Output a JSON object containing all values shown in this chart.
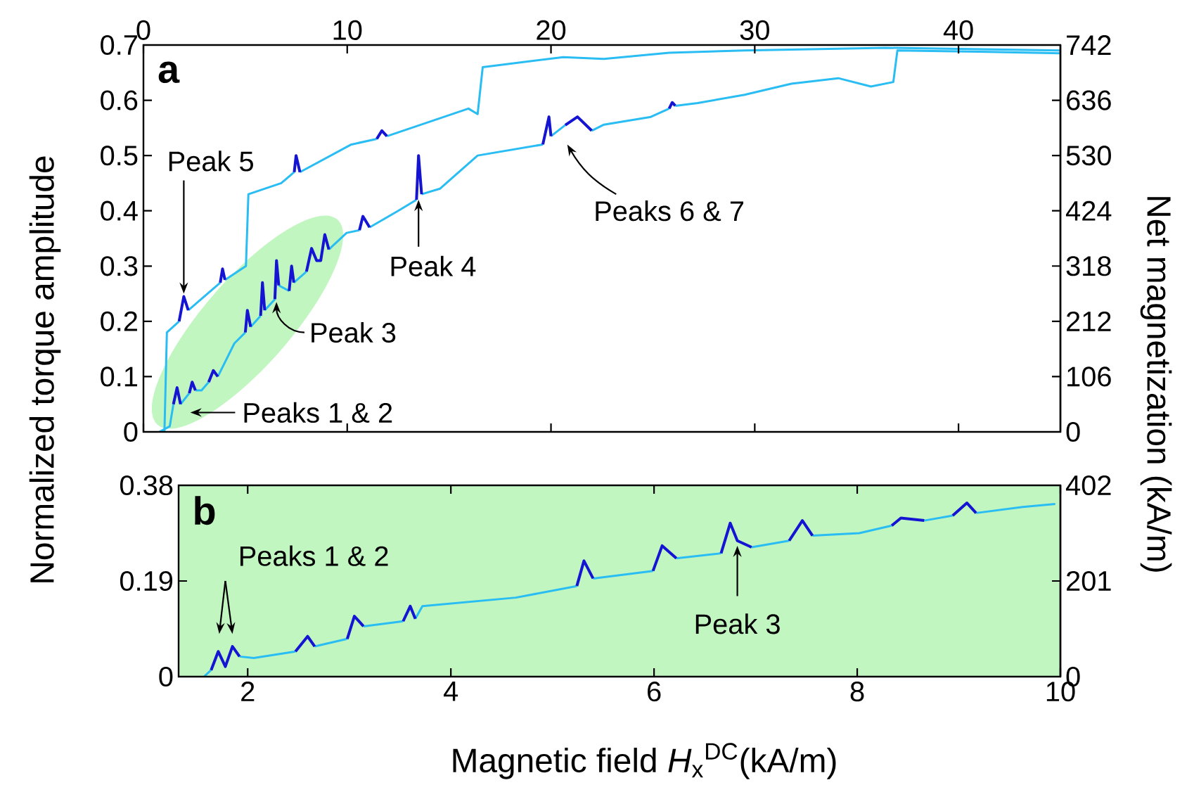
{
  "chart_data": [
    {
      "type": "line",
      "xlim": [
        0,
        45
      ],
      "xticks": [
        0,
        10,
        20,
        30,
        40
      ],
      "ylim": [
        0,
        0.7
      ],
      "yticks": [
        0,
        0.1,
        0.2,
        0.3,
        0.4,
        0.5,
        0.6,
        0.7
      ],
      "y2lim": [
        0,
        742
      ],
      "y2ticks": [
        0,
        106,
        212,
        318,
        424,
        530,
        636,
        742
      ],
      "ylabel": "Normalized torque amplitude",
      "y2label": "Net magnetization (kA/m)",
      "series": [
        {
          "color": "#29bdf3",
          "x": [
            1.03,
            1.15,
            1.75,
            null,
            2.2,
            3.77,
            null,
            4.0,
            5.03,
            5.15,
            6.76,
            7.4,
            null,
            7.68,
            10.2,
            11.45,
            null,
            11.95,
            15.95,
            16.4,
            16.65,
            20.6,
            22.6,
            25.8,
            29.5,
            36.4,
            45
          ],
          "values": [
            0,
            0.18,
            0.2,
            null,
            0.22,
            0.27,
            null,
            0.275,
            0.3,
            0.43,
            0.45,
            0.47,
            null,
            0.47,
            0.52,
            0.53,
            null,
            0.535,
            0.585,
            0.575,
            0.66,
            0.678,
            0.675,
            0.686,
            0.69,
            0.695,
            0.69
          ]
        },
        {
          "color": "#29bdf3",
          "x": [
            0.78,
            1.29,
            1.47,
            null,
            1.82,
            2.25,
            null,
            2.55,
            2.85,
            3.2,
            null,
            3.65,
            4.46,
            5.0,
            null,
            5.26,
            5.75,
            null,
            5.95,
            6.45,
            null,
            6.64,
            7.15,
            null,
            7.38,
            8.0,
            null,
            9.1,
            9.97,
            10.6,
            null,
            11.1,
            12.5,
            13.4,
            null,
            13.65,
            14.55,
            16.4,
            19.6,
            null,
            20.0,
            20.7,
            null,
            22.0,
            22.6,
            24.9,
            25.8,
            null,
            26.1,
            27.2,
            29.5,
            31.8,
            34.1,
            35.7,
            36.8,
            37.0,
            41.0,
            45.0
          ],
          "values": [
            0,
            0.01,
            0.05,
            null,
            0.05,
            0.07,
            null,
            0.075,
            0.075,
            0.09,
            null,
            0.1,
            0.16,
            0.18,
            null,
            0.19,
            0.21,
            null,
            0.22,
            0.24,
            null,
            0.265,
            0.255,
            null,
            0.27,
            0.29,
            null,
            0.33,
            0.36,
            0.365,
            null,
            0.37,
            0.4,
            0.42,
            null,
            0.43,
            0.44,
            0.5,
            0.52,
            null,
            0.535,
            0.555,
            null,
            0.545,
            0.556,
            0.57,
            0.585,
            null,
            0.59,
            0.595,
            0.61,
            0.63,
            0.64,
            0.625,
            0.633,
            0.69,
            0.688,
            0.685
          ]
        },
        {
          "color": "#1414d2",
          "x": [
            1.47,
            1.65,
            1.82,
            null,
            2.25,
            2.39,
            2.55,
            null,
            3.2,
            3.43,
            3.65,
            null,
            5.0,
            5.1,
            5.26,
            null,
            5.75,
            5.84,
            5.95,
            null,
            6.45,
            6.53,
            6.64,
            null,
            7.15,
            7.27,
            7.38,
            null,
            8.0,
            8.25,
            8.5,
            8.7,
            8.9,
            9.1,
            null,
            10.6,
            10.77,
            11.1,
            null,
            13.4,
            13.5,
            13.65,
            null,
            19.6,
            19.9,
            20.0,
            null,
            20.7,
            21.3,
            22.0,
            null,
            25.8,
            25.95,
            26.1
          ],
          "values": [
            0.05,
            0.08,
            0.05,
            null,
            0.07,
            0.09,
            0.075,
            null,
            0.09,
            0.111,
            0.1,
            null,
            0.18,
            0.22,
            0.19,
            null,
            0.21,
            0.27,
            0.22,
            null,
            0.24,
            0.31,
            0.265,
            null,
            0.255,
            0.3,
            0.27,
            null,
            0.29,
            0.332,
            0.31,
            0.31,
            0.357,
            0.33,
            null,
            0.365,
            0.39,
            0.37,
            null,
            0.42,
            0.5,
            0.43,
            null,
            0.52,
            0.57,
            0.535,
            null,
            0.555,
            0.57,
            0.545,
            null,
            0.585,
            0.596,
            0.59
          ]
        },
        {
          "color": "#1414d2",
          "x": [
            1.75,
            1.98,
            2.2,
            null,
            3.77,
            3.88,
            4.0,
            null,
            7.4,
            7.49,
            7.68,
            null,
            11.45,
            11.7,
            11.95
          ],
          "values": [
            0.2,
            0.245,
            0.22,
            null,
            0.27,
            0.295,
            0.275,
            null,
            0.47,
            0.5,
            0.47,
            null,
            0.53,
            0.545,
            0.535
          ]
        }
      ],
      "annotations": [
        "a",
        {
          "text": "Peak 5",
          "x": 1.98,
          "y": 0.24
        },
        {
          "text": "Peak 3",
          "x": 6.53,
          "y": 0.265
        },
        {
          "text": "Peak 4",
          "x": 13.5,
          "y": 0.43
        },
        "Peaks 6 & 7",
        "Peaks 1 & 2"
      ]
    },
    {
      "type": "line",
      "xlim": [
        1.32,
        10
      ],
      "xticks": [
        2,
        4,
        6,
        8,
        10
      ],
      "ylim": [
        0,
        0.38
      ],
      "yticks": [
        0,
        0.19,
        0.38
      ],
      "y2lim": [
        0,
        402
      ],
      "y2ticks": [
        0,
        201,
        402
      ],
      "xlabel": "Magnetic field *H*$_{x}$$^{DC}$(kA/m)",
      "bands": [
        {
          "axis": "x",
          "from": 1.32,
          "to": 10,
          "color": "#c1f6c1"
        }
      ],
      "series": [
        {
          "color": "#29bdf3",
          "x": [
            1.57,
            1.64,
            null,
            1.92,
            2.06,
            2.47,
            null,
            2.66,
            2.98,
            null,
            3.14,
            3.53,
            null,
            3.65,
            3.72,
            4.64,
            5.24,
            null,
            5.4,
            5.99,
            null,
            6.22,
            6.66,
            null,
            6.96,
            7.33,
            null,
            7.56,
            8.02,
            8.34,
            null,
            8.66,
            8.94,
            null,
            9.17,
            9.63,
            9.95
          ],
          "values": [
            0,
            0.013,
            null,
            0.04,
            0.037,
            0.05,
            null,
            0.06,
            0.075,
            null,
            0.1,
            0.11,
            null,
            0.115,
            0.14,
            0.157,
            0.18,
            null,
            0.195,
            0.21,
            null,
            0.235,
            0.245,
            null,
            0.257,
            0.27,
            null,
            0.28,
            0.285,
            0.3,
            null,
            0.31,
            0.32,
            null,
            0.325,
            0.337,
            0.343
          ]
        },
        {
          "color": "#1414d2",
          "x": [
            1.64,
            1.71,
            1.78,
            1.85,
            1.92,
            null,
            2.47,
            2.59,
            2.66,
            null,
            2.98,
            3.05,
            3.14,
            null,
            3.53,
            3.6,
            3.65,
            null,
            5.24,
            5.31,
            5.4,
            null,
            5.99,
            6.08,
            6.22,
            null,
            6.66,
            6.75,
            6.82,
            6.96,
            null,
            7.33,
            7.46,
            7.56,
            null,
            8.34,
            8.43,
            8.66,
            null,
            8.94,
            9.08,
            9.17
          ],
          "values": [
            0.013,
            0.05,
            0.02,
            0.06,
            0.04,
            null,
            0.05,
            0.08,
            0.06,
            null,
            0.075,
            0.12,
            0.1,
            null,
            0.11,
            0.14,
            0.115,
            null,
            0.18,
            0.23,
            0.195,
            null,
            0.21,
            0.26,
            0.235,
            null,
            0.245,
            0.305,
            0.27,
            0.257,
            null,
            0.27,
            0.31,
            0.28,
            null,
            0.3,
            0.315,
            0.31,
            null,
            0.32,
            0.345,
            0.325
          ]
        }
      ],
      "annotations": [
        "b",
        "Peaks 1 & 2",
        {
          "text": "Peak 3",
          "x": 6.82,
          "y": 0.27
        }
      ]
    }
  ]
}
